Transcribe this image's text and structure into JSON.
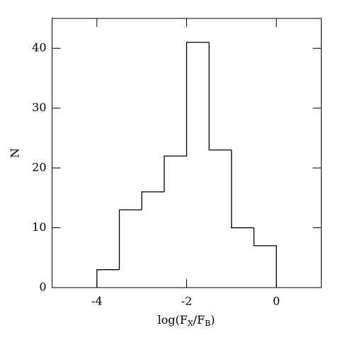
{
  "chart_data": {
    "type": "histogram",
    "bins": [
      -4,
      -3.5,
      -3,
      -2.5,
      -2,
      -1.5,
      -1,
      -0.5,
      0
    ],
    "values": [
      3,
      13,
      16,
      22,
      41,
      23,
      10,
      7
    ],
    "color": "#000000",
    "xlim": [
      -5,
      1
    ],
    "xticks": [
      -4,
      -2,
      0
    ],
    "ylim": [
      0,
      45
    ],
    "yticks": [
      0,
      10,
      20,
      30,
      40
    ],
    "xlabel": [
      "log(F",
      "X",
      "/F",
      "B",
      ")"
    ],
    "ylabel": "N"
  }
}
